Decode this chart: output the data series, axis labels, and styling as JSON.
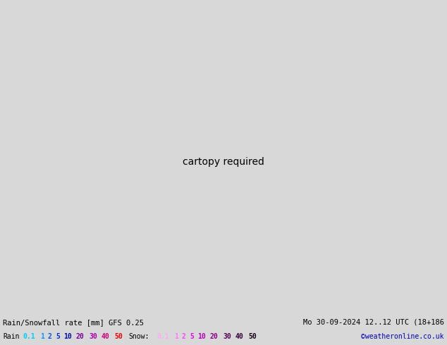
{
  "title_left": "Rain/Snowfall rate [mm] GFS 0.25",
  "title_right": "Mo 30-09-2024 12..12 UTC (18+186",
  "legend_rain_label": "Rain",
  "legend_snow_label": "Snow:",
  "rain_values": [
    "0.1",
    "1",
    "2",
    "5",
    "10",
    "20",
    "30",
    "40",
    "50"
  ],
  "snow_values": [
    "0.1",
    "1",
    "2",
    "5",
    "10",
    "20",
    "30",
    "40",
    "50"
  ],
  "rain_colors": [
    "#00ddff",
    "#00bbff",
    "#0088ff",
    "#0055ff",
    "#0022ff",
    "#7700cc",
    "#bb00bb",
    "#dd0077",
    "#ff0000"
  ],
  "snow_colors": [
    "#ffaaff",
    "#ff88ff",
    "#ff55ff",
    "#ee22ee",
    "#cc00cc",
    "#990099",
    "#660066",
    "#330033",
    "#110011"
  ],
  "copyright": "©weatheronline.co.uk",
  "bg_color": "#d8d8d8",
  "land_color": "#bbeeaa",
  "ocean_color": "#e8e8e8",
  "border_color": "#888888",
  "footer_bg": "#d8d8d8",
  "map_extent": [
    -40,
    115,
    -45,
    65
  ],
  "cyan_color": "#00ccff",
  "rain_number_color": "#000000",
  "cyan_area_color": "#88ddff"
}
